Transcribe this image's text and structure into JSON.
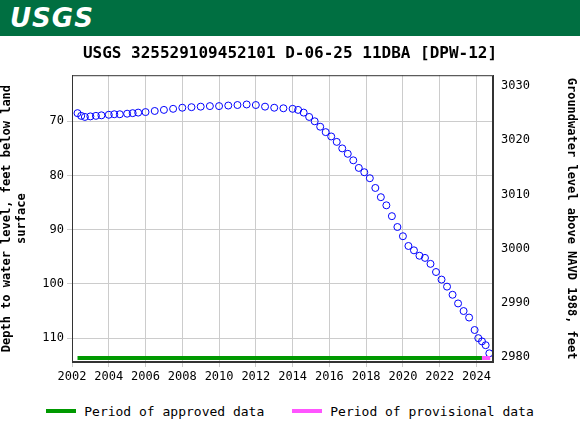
{
  "header": {
    "logo_text": "USGS"
  },
  "chart_data": {
    "type": "scatter",
    "title": "USGS 325529109452101 D-06-25 11DBA [DPW-12]",
    "ylabel": [
      "Depth to water level, feet below land",
      "surface"
    ],
    "y2label": "Groundwater level above NAVD 1988, feet",
    "x": [
      2002.3,
      2002.5,
      2002.7,
      2003.0,
      2003.3,
      2003.6,
      2004.0,
      2004.3,
      2004.6,
      2005.0,
      2005.3,
      2005.6,
      2006.0,
      2006.5,
      2007.0,
      2007.5,
      2008.0,
      2008.5,
      2009.0,
      2009.5,
      2010.0,
      2010.5,
      2011.0,
      2011.5,
      2012.0,
      2012.5,
      2013.0,
      2013.5,
      2014.0,
      2014.3,
      2014.6,
      2014.9,
      2015.2,
      2015.5,
      2015.8,
      2016.1,
      2016.4,
      2016.7,
      2017.0,
      2017.3,
      2017.6,
      2017.9,
      2018.2,
      2018.5,
      2018.8,
      2019.1,
      2019.4,
      2019.7,
      2020.0,
      2020.3,
      2020.6,
      2020.9,
      2021.2,
      2021.5,
      2021.8,
      2022.1,
      2022.4,
      2022.7,
      2023.0,
      2023.3,
      2023.6,
      2023.9,
      2024.1,
      2024.3,
      2024.5,
      2024.7
    ],
    "values": [
      68.5,
      69.0,
      69.2,
      69.1,
      69.0,
      68.9,
      68.8,
      68.7,
      68.7,
      68.6,
      68.5,
      68.4,
      68.3,
      68.1,
      67.9,
      67.7,
      67.5,
      67.4,
      67.3,
      67.2,
      67.2,
      67.1,
      67.0,
      66.9,
      67.0,
      67.3,
      67.5,
      67.6,
      67.7,
      67.9,
      68.4,
      69.2,
      70.0,
      71.0,
      72.0,
      72.8,
      73.8,
      75.0,
      76.0,
      77.2,
      78.6,
      79.4,
      80.5,
      82.3,
      84.0,
      85.5,
      87.5,
      89.5,
      91.2,
      93.0,
      93.8,
      94.8,
      95.2,
      96.3,
      97.8,
      99.2,
      100.5,
      102.0,
      103.6,
      105.0,
      106.2,
      108.5,
      110.0,
      110.6,
      111.3,
      112.8
    ],
    "color": "#0000ff",
    "marker": "open_circle",
    "xlim": [
      2002,
      2024.9
    ],
    "xticks": [
      2002,
      2004,
      2006,
      2008,
      2010,
      2012,
      2014,
      2016,
      2018,
      2020,
      2022,
      2024
    ],
    "ylim": [
      61.5,
      114.4
    ],
    "yticks": [
      70,
      80,
      90,
      100,
      110
    ],
    "y2lim": [
      2979.1,
      3032.0
    ],
    "y2ticks": [
      2980,
      2990,
      3000,
      3010,
      3020,
      3030
    ],
    "periods": [
      {
        "name": "Period of approved data",
        "color": "#009900",
        "start": 2002.3,
        "end": 2024.3
      },
      {
        "name": "Period of provisional data",
        "color": "#ff55ff",
        "start": 2024.3,
        "end": 2024.75
      }
    ],
    "legend": "bottom",
    "grid": true
  }
}
